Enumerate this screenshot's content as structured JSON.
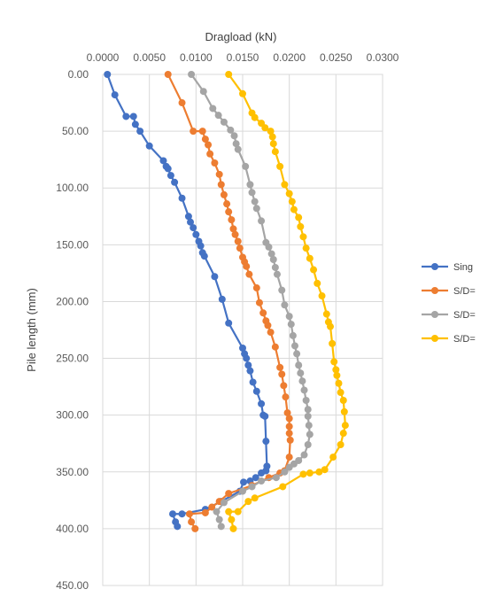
{
  "chart_data": {
    "type": "line",
    "title": "",
    "xlabel": "Dragload (kN)",
    "ylabel": "Pile length (mm)",
    "xlim": [
      0,
      0.03
    ],
    "ylim": [
      0,
      450
    ],
    "x_axis_position": "top",
    "y_axis_inverted": true,
    "grid": true,
    "legend_position": "right",
    "x_ticks": [
      "0.0000",
      "0.0050",
      "0.0100",
      "0.0150",
      "0.0200",
      "0.0250",
      "0.0300"
    ],
    "y_ticks": [
      "0.00",
      "50.00",
      "100.00",
      "150.00",
      "200.00",
      "250.00",
      "300.00",
      "350.00",
      "400.00",
      "450.00"
    ],
    "series": [
      {
        "name": "Sing",
        "color": "#4472c4",
        "points": [
          [
            0.0005,
            0
          ],
          [
            0.0013,
            18
          ],
          [
            0.0025,
            37
          ],
          [
            0.0033,
            37
          ],
          [
            0.0035,
            44
          ],
          [
            0.004,
            50
          ],
          [
            0.005,
            63
          ],
          [
            0.0065,
            76
          ],
          [
            0.0068,
            81
          ],
          [
            0.007,
            83
          ],
          [
            0.0073,
            89
          ],
          [
            0.0077,
            95
          ],
          [
            0.0085,
            109
          ],
          [
            0.0092,
            125
          ],
          [
            0.0094,
            130
          ],
          [
            0.0097,
            135
          ],
          [
            0.01,
            141
          ],
          [
            0.0103,
            147
          ],
          [
            0.0105,
            151
          ],
          [
            0.0107,
            157
          ],
          [
            0.0109,
            160
          ],
          [
            0.012,
            178
          ],
          [
            0.0128,
            198
          ],
          [
            0.0135,
            219
          ],
          [
            0.015,
            241
          ],
          [
            0.0152,
            246
          ],
          [
            0.0154,
            250
          ],
          [
            0.0156,
            256
          ],
          [
            0.0158,
            261
          ],
          [
            0.0161,
            271
          ],
          [
            0.0165,
            279
          ],
          [
            0.017,
            290
          ],
          [
            0.0172,
            300
          ],
          [
            0.0174,
            301
          ],
          [
            0.0175,
            323
          ],
          [
            0.0176,
            345
          ],
          [
            0.0175,
            349
          ],
          [
            0.017,
            351
          ],
          [
            0.0164,
            355
          ],
          [
            0.0158,
            358
          ],
          [
            0.0151,
            359
          ],
          [
            0.0147,
            367
          ],
          [
            0.0127,
            376
          ],
          [
            0.011,
            383
          ],
          [
            0.0085,
            387
          ],
          [
            0.0075,
            387
          ],
          [
            0.0078,
            394
          ],
          [
            0.008,
            398
          ]
        ]
      },
      {
        "name": "S/D=",
        "color": "#ed7d31",
        "points": [
          [
            0.007,
            0
          ],
          [
            0.0085,
            25
          ],
          [
            0.0097,
            50
          ],
          [
            0.0107,
            50
          ],
          [
            0.011,
            57
          ],
          [
            0.0113,
            62
          ],
          [
            0.0115,
            70
          ],
          [
            0.012,
            78
          ],
          [
            0.0125,
            88
          ],
          [
            0.0127,
            97
          ],
          [
            0.013,
            106
          ],
          [
            0.0133,
            114
          ],
          [
            0.0135,
            121
          ],
          [
            0.0138,
            128
          ],
          [
            0.014,
            136
          ],
          [
            0.0142,
            141
          ],
          [
            0.0145,
            147
          ],
          [
            0.0147,
            153
          ],
          [
            0.015,
            161
          ],
          [
            0.0152,
            165
          ],
          [
            0.0154,
            169
          ],
          [
            0.0157,
            176
          ],
          [
            0.0165,
            188
          ],
          [
            0.0168,
            201
          ],
          [
            0.0172,
            210
          ],
          [
            0.0175,
            217
          ],
          [
            0.0177,
            221
          ],
          [
            0.018,
            227
          ],
          [
            0.0185,
            240
          ],
          [
            0.019,
            258
          ],
          [
            0.0192,
            264
          ],
          [
            0.0194,
            274
          ],
          [
            0.0196,
            284
          ],
          [
            0.0198,
            298
          ],
          [
            0.02,
            303
          ],
          [
            0.02,
            310
          ],
          [
            0.02,
            316
          ],
          [
            0.0201,
            322
          ],
          [
            0.02,
            337
          ],
          [
            0.0195,
            349
          ],
          [
            0.019,
            351
          ],
          [
            0.0178,
            355
          ],
          [
            0.016,
            362
          ],
          [
            0.0135,
            369
          ],
          [
            0.0125,
            376
          ],
          [
            0.0117,
            381
          ],
          [
            0.011,
            386
          ],
          [
            0.0093,
            387
          ],
          [
            0.0095,
            394
          ],
          [
            0.0099,
            400
          ]
        ]
      },
      {
        "name": "S/D=",
        "color": "#a5a5a5",
        "points": [
          [
            0.0095,
            0
          ],
          [
            0.0108,
            15
          ],
          [
            0.0118,
            30
          ],
          [
            0.0124,
            36
          ],
          [
            0.013,
            42
          ],
          [
            0.0137,
            49
          ],
          [
            0.0141,
            54
          ],
          [
            0.0143,
            61
          ],
          [
            0.0145,
            66
          ],
          [
            0.0153,
            81
          ],
          [
            0.0158,
            97
          ],
          [
            0.016,
            104
          ],
          [
            0.0163,
            112
          ],
          [
            0.0165,
            118
          ],
          [
            0.017,
            129
          ],
          [
            0.0175,
            148
          ],
          [
            0.0178,
            152
          ],
          [
            0.0181,
            158
          ],
          [
            0.0183,
            163
          ],
          [
            0.0185,
            170
          ],
          [
            0.0187,
            176
          ],
          [
            0.0192,
            190
          ],
          [
            0.0195,
            203
          ],
          [
            0.02,
            213
          ],
          [
            0.0202,
            220
          ],
          [
            0.0204,
            230
          ],
          [
            0.0206,
            239
          ],
          [
            0.0208,
            246
          ],
          [
            0.021,
            256
          ],
          [
            0.0212,
            263
          ],
          [
            0.0214,
            270
          ],
          [
            0.0216,
            278
          ],
          [
            0.0218,
            287
          ],
          [
            0.022,
            295
          ],
          [
            0.022,
            301
          ],
          [
            0.0221,
            309
          ],
          [
            0.0222,
            317
          ],
          [
            0.022,
            326
          ],
          [
            0.0216,
            335
          ],
          [
            0.021,
            340
          ],
          [
            0.0205,
            343
          ],
          [
            0.02,
            346
          ],
          [
            0.0195,
            350
          ],
          [
            0.0186,
            355
          ],
          [
            0.017,
            358
          ],
          [
            0.016,
            363
          ],
          [
            0.015,
            367
          ],
          [
            0.013,
            377
          ],
          [
            0.0122,
            385
          ],
          [
            0.0125,
            392
          ],
          [
            0.0127,
            398
          ]
        ]
      },
      {
        "name": "S/D=",
        "color": "#ffc000",
        "points": [
          [
            0.0135,
            0
          ],
          [
            0.015,
            17
          ],
          [
            0.016,
            34
          ],
          [
            0.0163,
            38
          ],
          [
            0.017,
            43
          ],
          [
            0.0174,
            47
          ],
          [
            0.018,
            50
          ],
          [
            0.0182,
            55
          ],
          [
            0.0183,
            61
          ],
          [
            0.0185,
            68
          ],
          [
            0.019,
            81
          ],
          [
            0.0195,
            97
          ],
          [
            0.02,
            105
          ],
          [
            0.0203,
            112
          ],
          [
            0.0205,
            119
          ],
          [
            0.021,
            126
          ],
          [
            0.0212,
            134
          ],
          [
            0.0215,
            143
          ],
          [
            0.0218,
            153
          ],
          [
            0.0222,
            162
          ],
          [
            0.0226,
            172
          ],
          [
            0.023,
            184
          ],
          [
            0.0235,
            195
          ],
          [
            0.024,
            211
          ],
          [
            0.0242,
            218
          ],
          [
            0.0244,
            222
          ],
          [
            0.0246,
            237
          ],
          [
            0.0248,
            253
          ],
          [
            0.025,
            260
          ],
          [
            0.0251,
            265
          ],
          [
            0.0253,
            272
          ],
          [
            0.0255,
            280
          ],
          [
            0.0258,
            287
          ],
          [
            0.0259,
            297
          ],
          [
            0.026,
            309
          ],
          [
            0.0258,
            316
          ],
          [
            0.0255,
            326
          ],
          [
            0.0247,
            337
          ],
          [
            0.0238,
            348
          ],
          [
            0.0232,
            350
          ],
          [
            0.0222,
            351
          ],
          [
            0.0215,
            352
          ],
          [
            0.0193,
            363
          ],
          [
            0.0163,
            373
          ],
          [
            0.0156,
            376
          ],
          [
            0.0145,
            385
          ],
          [
            0.0135,
            385
          ],
          [
            0.0138,
            392
          ],
          [
            0.014,
            400
          ]
        ]
      }
    ]
  }
}
